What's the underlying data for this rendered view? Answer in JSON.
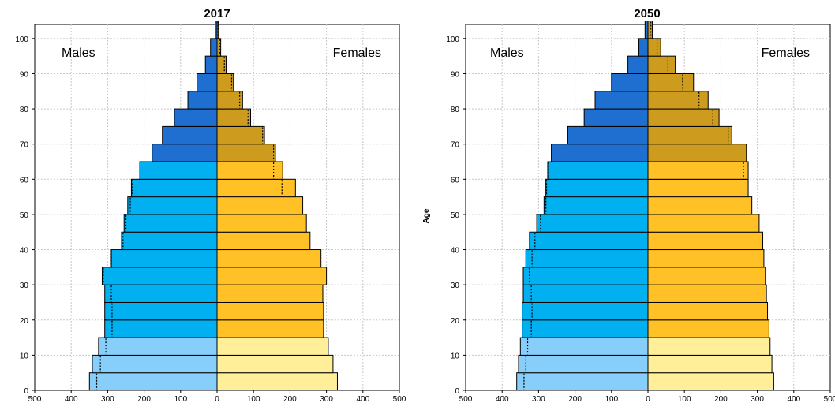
{
  "colors": {
    "male_young": "#87cefa",
    "male_working": "#00b0f0",
    "male_old": "#1f6fd0",
    "female_young": "#ffef99",
    "female_working": "#ffc125",
    "female_old": "#cd9b1d",
    "grid": "#c8c8c8",
    "outline": "#000000"
  },
  "chart_data": [
    {
      "type": "bar",
      "subtype": "population-pyramid",
      "title": "2017",
      "left_label": "Males",
      "right_label": "Females",
      "ylabel": "",
      "xlim": [
        -500,
        500
      ],
      "ylim": [
        0,
        104
      ],
      "x_ticks": [
        "500",
        "400",
        "300",
        "200",
        "100",
        "0",
        "100",
        "200",
        "300",
        "400",
        "500"
      ],
      "y_ticks": [
        "0",
        "10",
        "20",
        "30",
        "40",
        "50",
        "60",
        "70",
        "80",
        "90",
        "100"
      ],
      "grid": true,
      "age_groups": [
        "0-4",
        "5-9",
        "10-14",
        "15-19",
        "20-24",
        "25-29",
        "30-34",
        "35-39",
        "40-44",
        "45-49",
        "50-54",
        "55-59",
        "60-64",
        "65-69",
        "70-74",
        "75-79",
        "80-84",
        "85-89",
        "90-94",
        "95-99",
        "100+"
      ],
      "males": [
        350,
        342,
        325,
        308,
        308,
        308,
        315,
        290,
        262,
        255,
        245,
        235,
        212,
        178,
        150,
        117,
        80,
        55,
        32,
        18,
        5
      ],
      "females": [
        330,
        318,
        305,
        292,
        292,
        290,
        300,
        285,
        255,
        245,
        235,
        215,
        180,
        160,
        130,
        92,
        70,
        45,
        25,
        10,
        4
      ],
      "males_comparison": [
        330,
        320,
        305,
        288,
        288,
        290,
        312,
        290,
        258,
        250,
        238,
        232,
        null,
        null,
        null,
        null,
        null,
        null,
        null,
        null,
        null
      ],
      "females_comparison": [
        null,
        null,
        null,
        null,
        null,
        null,
        null,
        null,
        null,
        null,
        null,
        178,
        155,
        155,
        125,
        85,
        62,
        40,
        20,
        8,
        3
      ]
    },
    {
      "type": "bar",
      "subtype": "population-pyramid",
      "title": "2050",
      "left_label": "Males",
      "right_label": "Females",
      "ylabel": "Age",
      "xlim": [
        -500,
        500
      ],
      "ylim": [
        0,
        104
      ],
      "x_ticks": [
        "500",
        "400",
        "300",
        "200",
        "100",
        "0",
        "100",
        "200",
        "300",
        "400",
        "500"
      ],
      "y_ticks": [
        "0",
        "10",
        "20",
        "30",
        "40",
        "50",
        "60",
        "70",
        "80",
        "90",
        "100"
      ],
      "grid": true,
      "age_groups": [
        "0-4",
        "5-9",
        "10-14",
        "15-19",
        "20-24",
        "25-29",
        "30-34",
        "35-39",
        "40-44",
        "45-49",
        "50-54",
        "55-59",
        "60-64",
        "65-69",
        "70-74",
        "75-79",
        "80-84",
        "85-89",
        "90-94",
        "95-99",
        "100+"
      ],
      "males": [
        360,
        355,
        350,
        345,
        345,
        342,
        342,
        335,
        325,
        305,
        285,
        280,
        275,
        265,
        220,
        175,
        145,
        100,
        55,
        25,
        8
      ],
      "females": [
        345,
        340,
        335,
        332,
        328,
        325,
        322,
        318,
        315,
        305,
        285,
        275,
        275,
        270,
        230,
        195,
        165,
        125,
        75,
        35,
        12
      ],
      "males_comparison": [
        340,
        335,
        330,
        320,
        318,
        320,
        325,
        318,
        310,
        295,
        280,
        278,
        272,
        null,
        null,
        null,
        null,
        null,
        null,
        null,
        null
      ],
      "females_comparison": [
        null,
        null,
        null,
        null,
        null,
        null,
        null,
        null,
        null,
        null,
        null,
        null,
        262,
        null,
        220,
        178,
        140,
        95,
        55,
        25,
        8
      ]
    }
  ]
}
